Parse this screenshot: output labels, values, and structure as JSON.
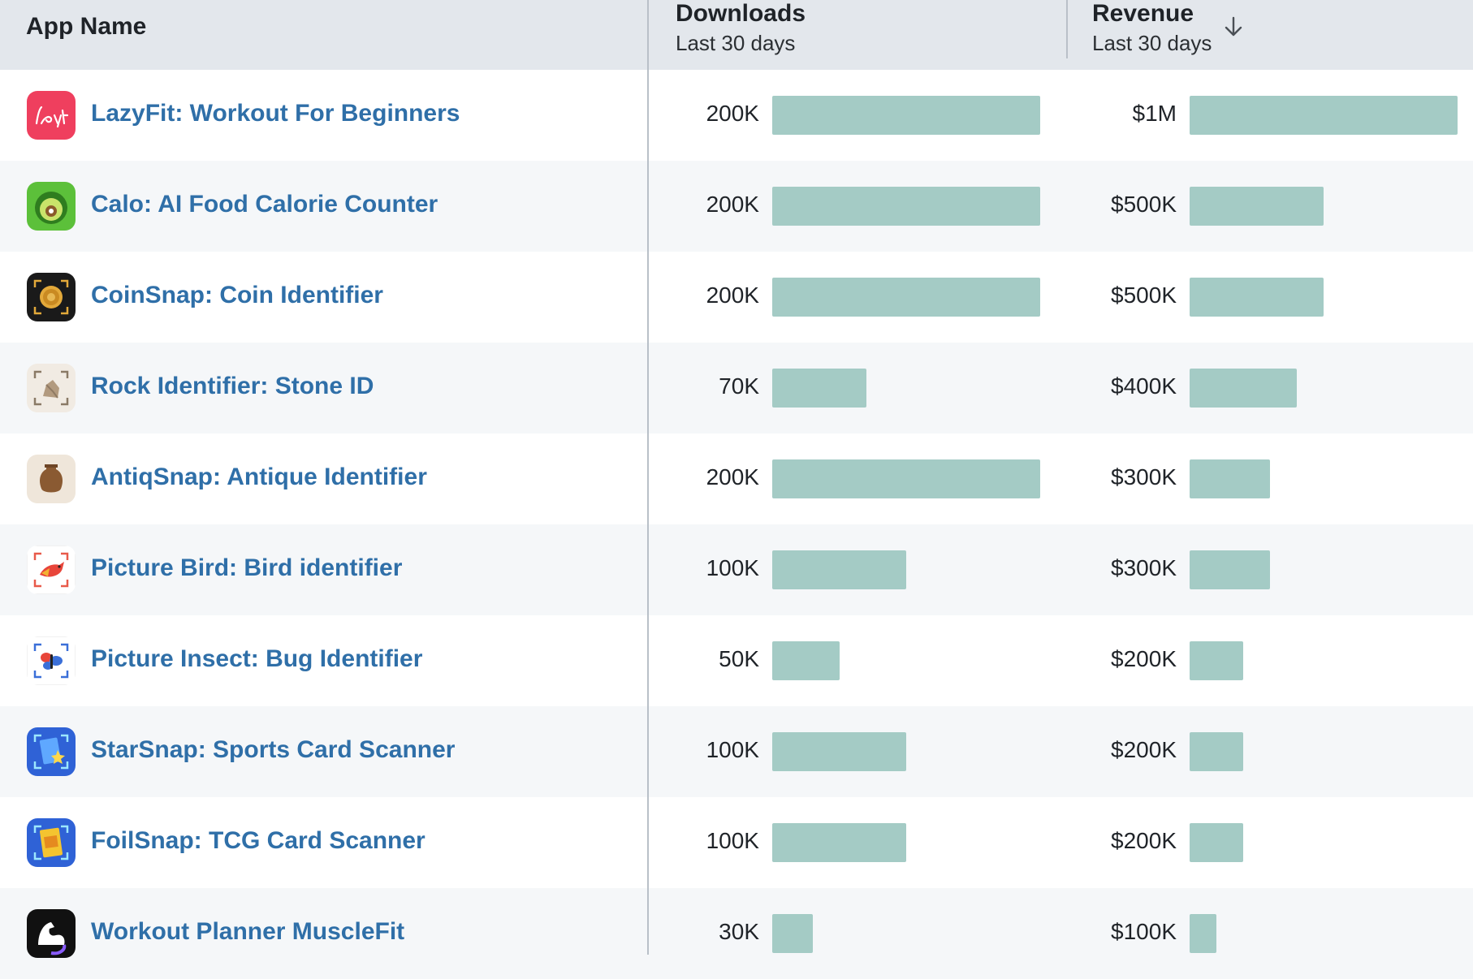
{
  "columns": {
    "app_name": "App Name",
    "downloads": {
      "title": "Downloads",
      "subtitle": "Last 30 days"
    },
    "revenue": {
      "title": "Revenue",
      "subtitle": "Last 30 days",
      "sort": "descending"
    }
  },
  "scale": {
    "downloads_max": 200000,
    "revenue_max": 1000000
  },
  "colors": {
    "bar": "#a4cbc5",
    "link": "#2f6fa8",
    "header_bg": "#e3e7ec"
  },
  "rows": [
    {
      "name": "LazyFit: Workout For Beginners",
      "icon": "lazyfit-icon",
      "downloads_label": "200K",
      "downloads": 200000,
      "revenue_label": "$1M",
      "revenue": 1000000
    },
    {
      "name": "Calo: AI Food Calorie Counter",
      "icon": "calo-icon",
      "downloads_label": "200K",
      "downloads": 200000,
      "revenue_label": "$500K",
      "revenue": 500000
    },
    {
      "name": "CoinSnap: Coin Identifier",
      "icon": "coinsnap-icon",
      "downloads_label": "200K",
      "downloads": 200000,
      "revenue_label": "$500K",
      "revenue": 500000
    },
    {
      "name": "Rock Identifier: Stone ID",
      "icon": "rock-identifier-icon",
      "downloads_label": "70K",
      "downloads": 70000,
      "revenue_label": "$400K",
      "revenue": 400000
    },
    {
      "name": "AntiqSnap: Antique Identifier",
      "icon": "antiqsnap-icon",
      "downloads_label": "200K",
      "downloads": 200000,
      "revenue_label": "$300K",
      "revenue": 300000
    },
    {
      "name": "Picture Bird: Bird identifier",
      "icon": "picture-bird-icon",
      "downloads_label": "100K",
      "downloads": 100000,
      "revenue_label": "$300K",
      "revenue": 300000
    },
    {
      "name": "Picture Insect: Bug Identifier",
      "icon": "picture-insect-icon",
      "downloads_label": "50K",
      "downloads": 50000,
      "revenue_label": "$200K",
      "revenue": 200000
    },
    {
      "name": "StarSnap: Sports Card Scanner",
      "icon": "starsnap-icon",
      "downloads_label": "100K",
      "downloads": 100000,
      "revenue_label": "$200K",
      "revenue": 200000
    },
    {
      "name": "FoilSnap: TCG Card Scanner",
      "icon": "foilsnap-icon",
      "downloads_label": "100K",
      "downloads": 100000,
      "revenue_label": "$200K",
      "revenue": 200000
    },
    {
      "name": "Workout Planner MuscleFit",
      "icon": "musclefit-icon",
      "downloads_label": "30K",
      "downloads": 30000,
      "revenue_label": "$100K",
      "revenue": 100000
    }
  ]
}
